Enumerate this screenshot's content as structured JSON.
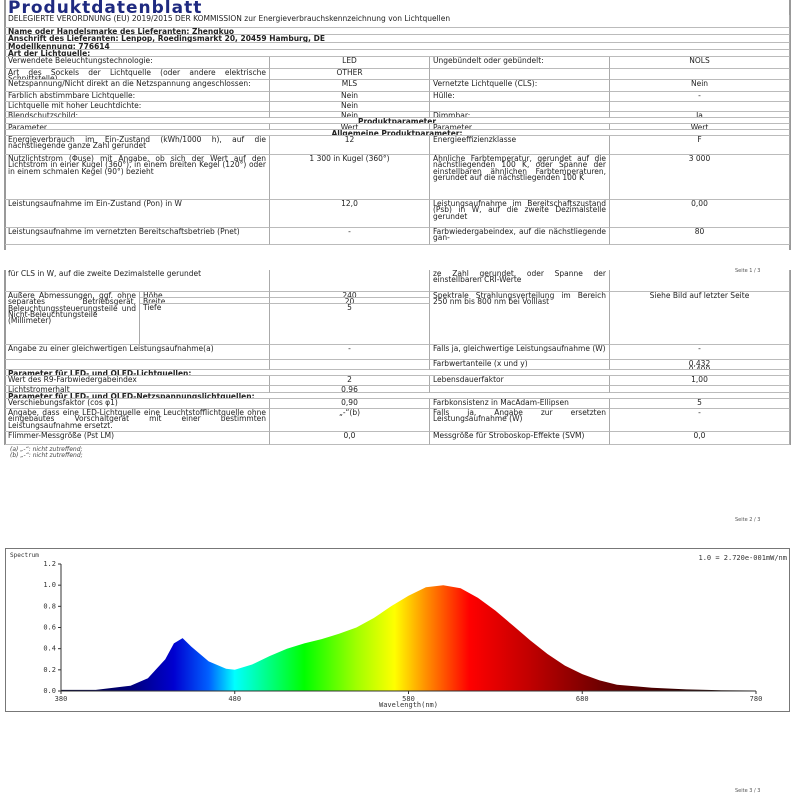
{
  "title": "Produktdatenblatt",
  "page1": {
    "header_rows": [
      "DELEGIERTE VERORDNUNG (EU) 2019/2015 DER KOMMISSION zur Energieverbrauchskennzeichnung von Lichtquellen",
      "Name oder Handelsmarke des Lieferanten: Zhengkuo",
      "Anschrift des Lieferanten: Lenpop, Roedingsmarkt 20, 20459 Hamburg, DE",
      "Modellkennung: 776614",
      "Art der Lichtquelle:"
    ],
    "type_rows": [
      [
        "Verwendete Beleuchtungstechnologie:",
        "LED",
        "Ungebündelt oder gebündelt:",
        "NOLS"
      ],
      [
        "Art des Sockels der Lichtquelle (oder andere elektrische Schnittstelle)",
        "OTHER",
        "",
        ""
      ],
      [
        "Netzspannung/Nicht direkt an die Netzspannung angeschlossen:",
        "MLS",
        "Vernetzte Lichtquelle (CLS):",
        "Nein"
      ],
      [
        "Farblich abstimmbare Lichtquelle:",
        "Nein",
        "Hülle:",
        "-"
      ],
      [
        "Lichtquelle mit hoher Leuchtdichte:",
        "Nein",
        "",
        ""
      ],
      [
        "Blendschutzschild:",
        "Nein",
        "Dimmbar:",
        "Ja"
      ]
    ],
    "section_produktparameter": "Produktparameter",
    "col_headers": [
      "Parameter",
      "Wert",
      "Parameter",
      "Wert"
    ],
    "section_allgemein": "Allgemeine Produktparameter:",
    "param_rows": [
      [
        "Energieverbrauch im Ein-Zustand (kWh/1000 h), auf die nächstliegende ganze Zahl gerundet",
        "12",
        "Energieeffizienzklasse",
        "F"
      ],
      [
        "Nutzlichtstrom (Φuse) mit Angabe, ob sich der Wert auf den Lichtstrom in einer Kugel (360°), in einem breiten Kegel (120°) oder in einem schmalen Kegel (90°) bezieht",
        "1 300 in Kugel (360°)",
        "Ähnliche Farbtemperatur, gerundet auf die nächstliegenden 100 K, oder Spanne der einstellbaren ähnlichen Farbtemperaturen, gerundet auf die nächstliegenden 100 K",
        "3 000"
      ],
      [
        "Leistungsaufnahme im Ein-Zustand (Pon) in W",
        "12,0",
        "Leistungsaufnahme im Bereitschaftszustand (Psb) in W, auf die zweite Dezimalstelle gerundet",
        "0,00"
      ],
      [
        "Leistungsaufnahme im vernetzten Bereitschaftsbetrieb (Pnet)",
        "-",
        "Farbwiedergabeindex, auf die nächstliegende gan-",
        "80"
      ]
    ],
    "page_number": "Seite 1 / 3"
  },
  "page2": {
    "rows": [
      [
        "für CLS in W, auf die zweite Dezimalstelle gerundet",
        "",
        "ze Zahl gerundet, oder Spanne der einstellbaren CRI-Werte",
        ""
      ],
      [
        "Angabe zu einer gleichwertigen Leistungsaufnahme(a)",
        "-",
        "Falls ja, gleichwertige Leistungsaufnahme (W)",
        "-"
      ],
      [
        "",
        "",
        "Farbwertanteile (x und y)",
        "0,432\n0,400"
      ]
    ],
    "dimensions": {
      "label": "Äußere Abmessungen, ggf. ohne separates Betriebsgerät, Beleuchtungssteuerungsteile und Nicht-Beleuchtungsteile (Millimeter)",
      "items": [
        [
          "Höhe",
          "240"
        ],
        [
          "Breite",
          "20"
        ],
        [
          "Tiefe",
          "5"
        ]
      ],
      "right_label": "Spektrale Strahlungsverteilung im Bereich 250 nm bis 800 nm bei Volllast",
      "right_value": "Siehe Bild auf letzter Seite"
    },
    "section_led": "Parameter für LED- und OLED-Lichtquellen:",
    "led_rows": [
      [
        "Wert des R9-Farbwiedergabeindex",
        "2",
        "Lebensdauerfaktor",
        "1,00"
      ],
      [
        "Lichtstromerhalt",
        "0,96",
        "",
        ""
      ]
    ],
    "section_netz": "Parameter für LED- und OLED-Netzspannungslichtquellen:",
    "netz_rows": [
      [
        "Verschiebungsfaktor (cos φ1)",
        "0,90",
        "Farbkonsistenz in MacAdam-Ellipsen",
        "5"
      ],
      [
        "Angabe, dass eine LED-Lichtquelle eine Leuchtstofflichtquelle ohne eingebautes Vorschaltgerät mit einer bestimmten Leistungsaufnahme ersetzt.",
        "„-“(b)",
        "Falls ja, Angabe zur ersetzten Leistungsaufnahme (W)",
        "-"
      ],
      [
        "Flimmer-Messgröße (Pst LM)",
        "0,0",
        "Messgröße für Stroboskop-Effekte (SVM)",
        "0,0"
      ]
    ],
    "footnotes": [
      "(a) „-“: nicht zutreffend;",
      "(b) „-“: nicht zutreffend;"
    ],
    "page_number": "Seite 2 / 3"
  },
  "page3": {
    "page_number": "Seite 3 / 3"
  },
  "chart_data": {
    "type": "area",
    "title": "Spectrum",
    "annotation": "1.0 = 2.720e-001mW/nm",
    "xlabel": "Wavelength(nm)",
    "ylabel": "",
    "xlim": [
      380,
      780
    ],
    "ylim": [
      0,
      1.2
    ],
    "xticks": [
      "380",
      "480",
      "580",
      "680",
      "780"
    ],
    "yticks": [
      "0.0",
      "0.2",
      "0.4",
      "0.6",
      "0.8",
      "1.0",
      "1.2"
    ],
    "grid": false,
    "fill": "visible-spectrum-gradient",
    "x": [
      380,
      400,
      420,
      430,
      440,
      445,
      450,
      455,
      465,
      475,
      480,
      490,
      500,
      510,
      520,
      530,
      540,
      550,
      560,
      570,
      580,
      590,
      600,
      610,
      620,
      630,
      640,
      650,
      660,
      670,
      680,
      690,
      700,
      720,
      740,
      760,
      780
    ],
    "y": [
      0.01,
      0.01,
      0.05,
      0.12,
      0.3,
      0.45,
      0.5,
      0.42,
      0.28,
      0.21,
      0.2,
      0.25,
      0.33,
      0.4,
      0.45,
      0.49,
      0.54,
      0.6,
      0.69,
      0.8,
      0.9,
      0.98,
      1.0,
      0.97,
      0.88,
      0.76,
      0.62,
      0.48,
      0.35,
      0.24,
      0.16,
      0.1,
      0.06,
      0.03,
      0.015,
      0.008,
      0.005
    ]
  }
}
